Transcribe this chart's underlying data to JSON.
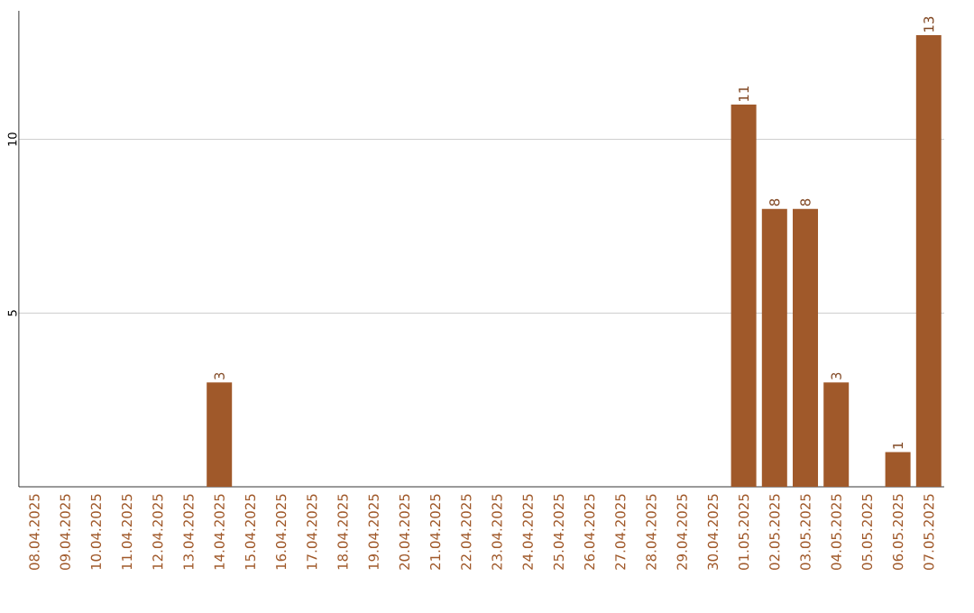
{
  "chart_data": {
    "type": "bar",
    "categories": [
      "08.04.2025",
      "09.04.2025",
      "10.04.2025",
      "11.04.2025",
      "12.04.2025",
      "13.04.2025",
      "14.04.2025",
      "15.04.2025",
      "16.04.2025",
      "17.04.2025",
      "18.04.2025",
      "19.04.2025",
      "20.04.2025",
      "21.04.2025",
      "22.04.2025",
      "23.04.2025",
      "24.04.2025",
      "25.04.2025",
      "26.04.2025",
      "27.04.2025",
      "28.04.2025",
      "29.04.2025",
      "30.04.2025",
      "01.05.2025",
      "02.05.2025",
      "03.05.2025",
      "04.05.2025",
      "05.05.2025",
      "06.05.2025",
      "07.05.2025"
    ],
    "values": [
      0,
      0,
      0,
      0,
      0,
      0,
      3,
      0,
      0,
      0,
      0,
      0,
      0,
      0,
      0,
      0,
      0,
      0,
      0,
      0,
      0,
      0,
      0,
      11,
      8,
      8,
      3,
      0,
      1,
      13
    ],
    "value_labels": [
      null,
      null,
      null,
      null,
      null,
      null,
      "3",
      null,
      null,
      null,
      null,
      null,
      null,
      null,
      null,
      null,
      null,
      null,
      null,
      null,
      null,
      null,
      null,
      "11",
      "8",
      "8",
      "3",
      null,
      "1",
      "13"
    ],
    "color": "#a0592a",
    "ylim": [
      0,
      13.7
    ],
    "yticks": [
      5,
      10
    ],
    "grid": "y"
  }
}
